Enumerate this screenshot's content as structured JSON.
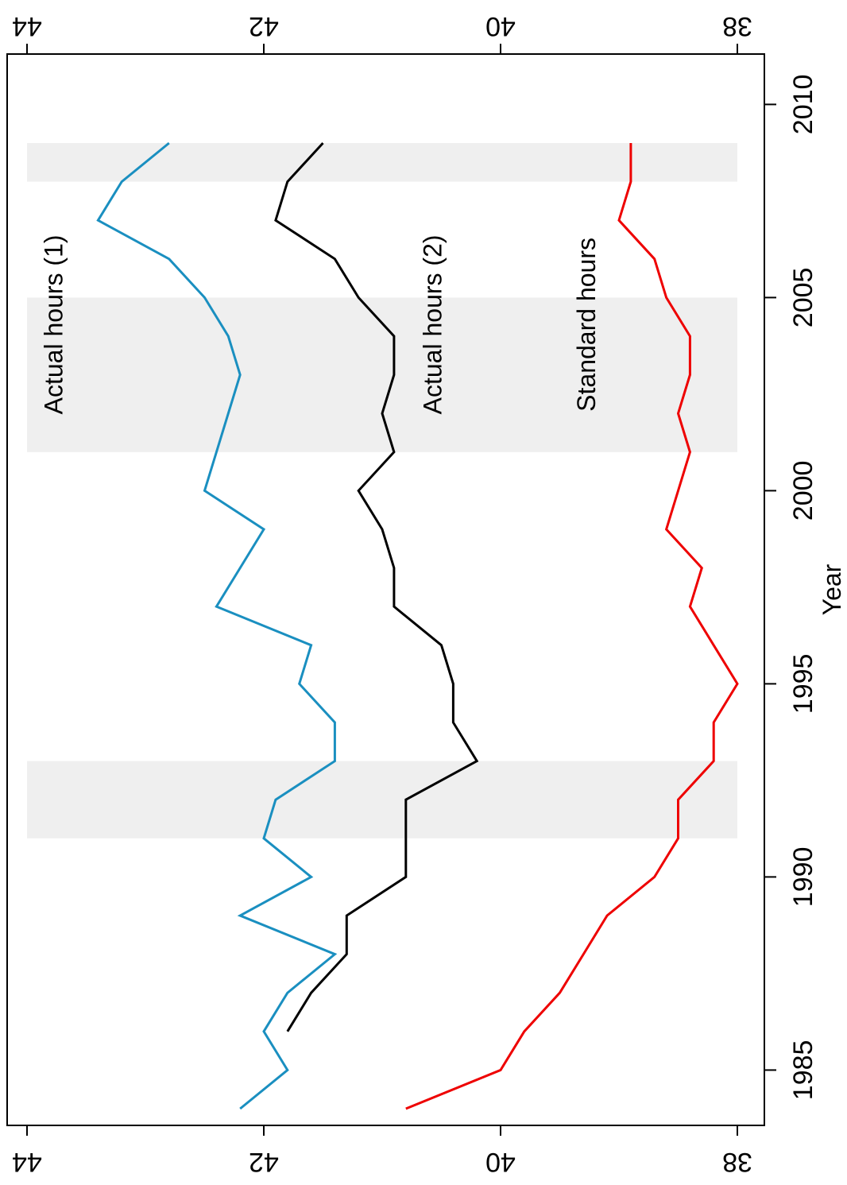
{
  "chart_data": {
    "type": "line",
    "orientation": "rotated-90",
    "xlabel": "Year",
    "ylabel": "",
    "xlim": [
      1983.6,
      2010.5
    ],
    "ylim": [
      37.8,
      44.2
    ],
    "x_ticks": [
      1985,
      1990,
      1995,
      2000,
      2005,
      2010
    ],
    "y_ticks": [
      38,
      40,
      42,
      44
    ],
    "y_tick_labels": [
      "38",
      "40",
      "42",
      "44"
    ],
    "x_tick_labels": [
      "1985",
      "1990",
      "1995",
      "2000",
      "2005",
      "2010"
    ],
    "shaded_periods": [
      [
        1991,
        1993
      ],
      [
        2001,
        2005
      ],
      [
        2008,
        2009
      ]
    ],
    "series": [
      {
        "name": "Actual hours (1)",
        "color": "#1a8fc0",
        "x": [
          1984,
          1985,
          1986,
          1987,
          1988,
          1989,
          1990,
          1991,
          1992,
          1993,
          1994,
          1995,
          1996,
          1997,
          1998,
          1999,
          2000,
          2001,
          2002,
          2003,
          2004,
          2005,
          2006,
          2007,
          2008,
          2009
        ],
        "y": [
          42.2,
          41.8,
          42.0,
          41.8,
          41.4,
          42.2,
          41.6,
          42.0,
          41.9,
          41.4,
          41.4,
          41.7,
          41.6,
          42.4,
          42.2,
          42.0,
          42.5,
          42.4,
          42.3,
          42.2,
          42.3,
          42.5,
          42.8,
          43.4,
          43.2,
          42.8
        ]
      },
      {
        "name": "Actual hours (2)",
        "color": "#000000",
        "x": [
          1986,
          1987,
          1988,
          1989,
          1990,
          1991,
          1992,
          1993,
          1994,
          1995,
          1996,
          1997,
          1998,
          1999,
          2000,
          2001,
          2002,
          2003,
          2004,
          2005,
          2006,
          2007,
          2008,
          2009
        ],
        "y": [
          41.8,
          41.6,
          41.3,
          41.3,
          40.8,
          40.8,
          40.8,
          40.2,
          40.4,
          40.4,
          40.5,
          40.9,
          40.9,
          41.0,
          41.2,
          40.9,
          41.0,
          40.9,
          40.9,
          41.2,
          41.4,
          41.9,
          41.8,
          41.5
        ]
      },
      {
        "name": "Standard hours",
        "color": "#ee0000",
        "x": [
          1984,
          1985,
          1986,
          1987,
          1988,
          1989,
          1990,
          1991,
          1992,
          1993,
          1994,
          1995,
          1996,
          1997,
          1998,
          1999,
          2000,
          2001,
          2002,
          2003,
          2004,
          2005,
          2006,
          2007,
          2008,
          2009
        ],
        "y": [
          40.8,
          40.0,
          39.8,
          39.5,
          39.3,
          39.1,
          38.7,
          38.5,
          38.5,
          38.2,
          38.2,
          38.0,
          38.2,
          38.4,
          38.3,
          38.6,
          38.5,
          38.4,
          38.5,
          38.4,
          38.4,
          38.6,
          38.7,
          39.0,
          38.9,
          38.9
        ]
      }
    ],
    "annotations": [
      {
        "text": "Actual hours (1)",
        "x": 2004.3,
        "y": 43.7
      },
      {
        "text": "Actual hours (2)",
        "x": 2004.3,
        "y": 40.5
      },
      {
        "text": "Standard hours",
        "x": 2004.3,
        "y": 39.2
      }
    ],
    "grid": false,
    "legend": "none"
  }
}
